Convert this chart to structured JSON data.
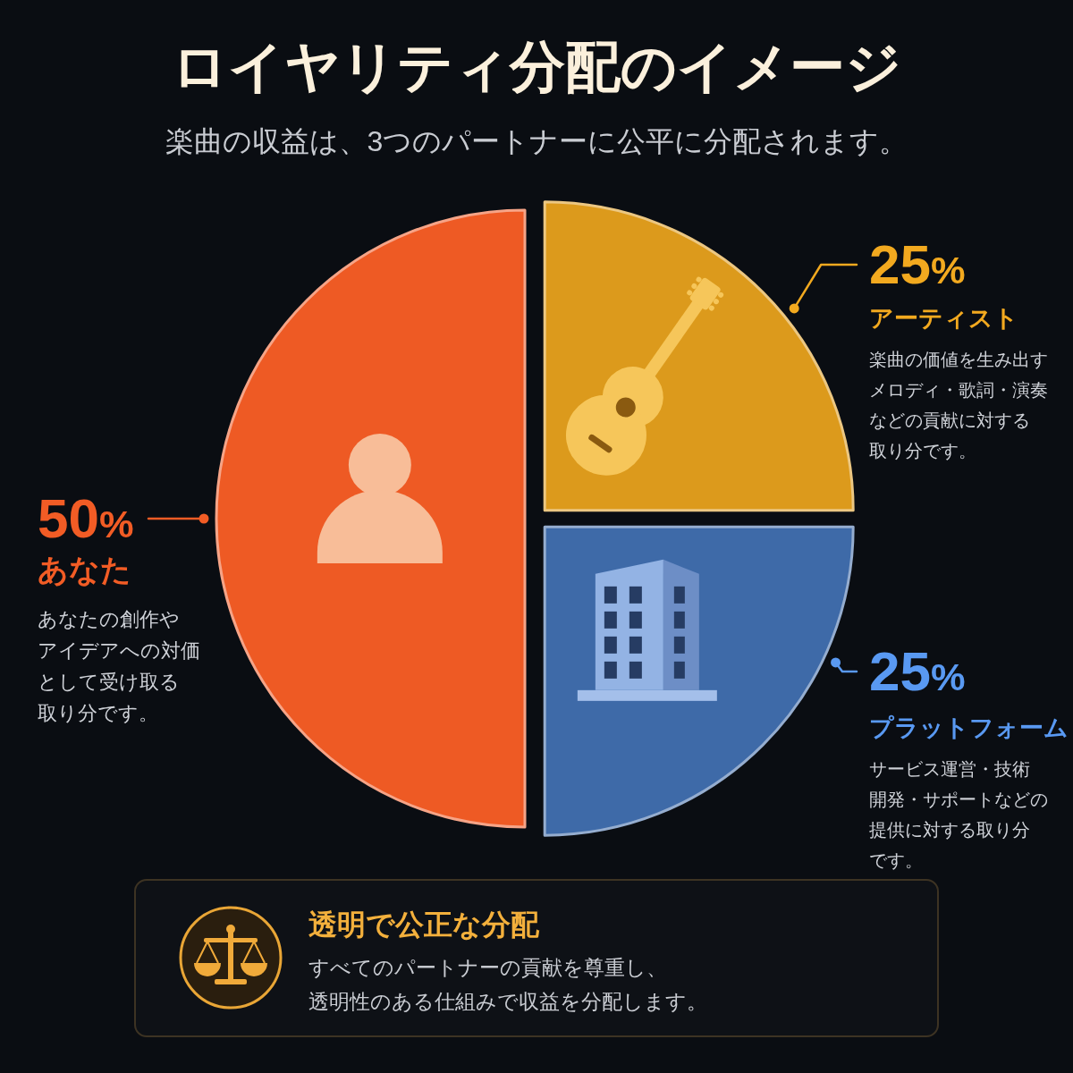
{
  "chart_data": [
    {
      "type": "pie",
      "title": "ロイヤリティ分配のイメージ",
      "subtitle": "楽曲の収益は、3つのパートナーに公平に分配されます。",
      "categories": [
        "あなた",
        "アーティスト",
        "プラットフォーム"
      ],
      "values": [
        50,
        25,
        25
      ],
      "colors": [
        "#ee5a24",
        "#dc9a1c",
        "#3e6aa8"
      ],
      "value_labels": [
        "50%",
        "25%",
        "25%"
      ],
      "annotations": [
        "あなたの創作やアイデアへの対価として受け取る取り分です。",
        "楽曲の価値を生み出すメロディ・歌詞・演奏などの貢献に対する取り分です。",
        "サービス運営・技術開発・サポートなどの提供に対する取り分です。"
      ]
    },
    {
      "type": "other",
      "title": "透明で公正な分配",
      "annotations": [
        "すべてのパートナーの貢献を尊重し、透明性のある仕組みで収益を分配します。"
      ]
    }
  ]
}
